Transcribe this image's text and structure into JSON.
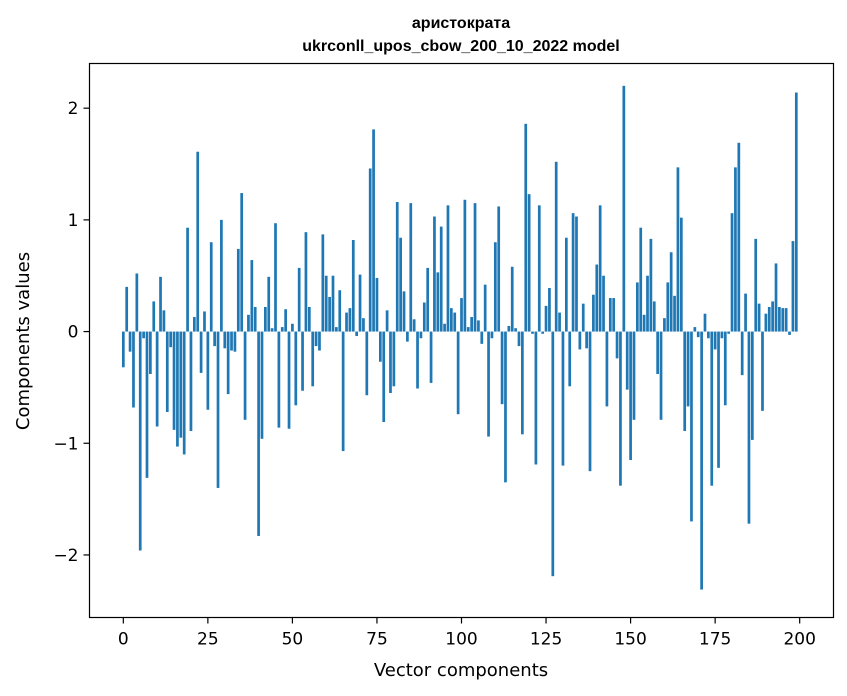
{
  "chart_data": {
    "type": "bar",
    "title": "аристократа",
    "subtitle": "ukrconll_upos_cbow_200_10_2022 model",
    "xlabel": "Vector components",
    "ylabel": "Components values",
    "xlim": [
      -10,
      210
    ],
    "ylim": [
      -2.56,
      2.4
    ],
    "x_ticks": [
      0,
      25,
      50,
      75,
      100,
      125,
      150,
      175,
      200
    ],
    "x_tick_labels": [
      "0",
      "25",
      "50",
      "75",
      "100",
      "125",
      "150",
      "175",
      "200"
    ],
    "y_ticks": [
      -2,
      -1,
      0,
      1,
      2
    ],
    "y_tick_labels": [
      "−2",
      "−1",
      "0",
      "1",
      "2"
    ],
    "bar_color": "#1f77b4",
    "grid": false,
    "legend": "none",
    "values": [
      -0.32,
      0.4,
      -0.18,
      -0.68,
      0.52,
      -1.96,
      -0.06,
      -1.31,
      -0.38,
      0.27,
      -0.85,
      0.49,
      0.19,
      -0.72,
      -0.14,
      -0.88,
      -1.03,
      -0.95,
      -1.1,
      0.93,
      -0.89,
      0.13,
      1.61,
      -0.37,
      0.18,
      -0.7,
      0.8,
      -0.13,
      -1.4,
      1.0,
      -0.15,
      -0.56,
      -0.17,
      -0.18,
      0.74,
      1.24,
      -0.79,
      0.15,
      0.64,
      0.22,
      -1.83,
      -0.96,
      0.22,
      0.49,
      0.03,
      0.97,
      -0.86,
      0.04,
      0.2,
      -0.87,
      0.07,
      -0.66,
      0.57,
      -0.53,
      0.89,
      0.22,
      -0.49,
      -0.13,
      -0.17,
      0.87,
      0.5,
      0.31,
      0.5,
      0.04,
      0.37,
      -1.07,
      0.17,
      0.21,
      0.82,
      -0.04,
      0.51,
      0.12,
      -0.57,
      1.46,
      1.81,
      0.48,
      -0.27,
      -0.81,
      0.19,
      -0.55,
      -0.49,
      1.16,
      0.84,
      0.36,
      -0.09,
      1.15,
      0.11,
      -0.51,
      -0.06,
      0.26,
      0.57,
      -0.46,
      1.03,
      0.53,
      0.94,
      0.07,
      1.13,
      0.21,
      0.17,
      -0.74,
      0.3,
      1.18,
      0.04,
      0.13,
      1.15,
      0.1,
      -0.11,
      0.42,
      -0.94,
      -0.06,
      0.8,
      1.12,
      -0.65,
      -1.35,
      0.05,
      0.58,
      0.03,
      -0.13,
      -0.92,
      1.86,
      1.23,
      -0.02,
      -1.19,
      1.13,
      -0.02,
      0.23,
      0.39,
      -2.19,
      1.52,
      0.17,
      -1.2,
      0.84,
      -0.49,
      1.06,
      1.03,
      -0.16,
      0.25,
      -0.15,
      -1.25,
      0.33,
      0.6,
      1.13,
      0.5,
      -0.67,
      0.3,
      0.3,
      -0.24,
      -1.38,
      2.2,
      -0.52,
      -1.15,
      -0.79,
      0.44,
      0.93,
      0.15,
      0.5,
      0.83,
      0.27,
      -0.38,
      -0.79,
      0.12,
      0.44,
      0.71,
      0.32,
      1.47,
      1.02,
      -0.89,
      -0.67,
      -1.7,
      0.04,
      -0.05,
      -2.31,
      0.16,
      -0.06,
      -1.38,
      -0.16,
      -1.22,
      -0.06,
      -0.66,
      -0.02,
      1.06,
      1.47,
      1.69,
      -0.39,
      0.34,
      -1.72,
      -0.97,
      0.83,
      0.25,
      -0.71,
      0.16,
      0.22,
      0.27,
      0.61,
      0.22,
      0.21,
      0.21,
      -0.03,
      0.81,
      2.14
    ]
  }
}
